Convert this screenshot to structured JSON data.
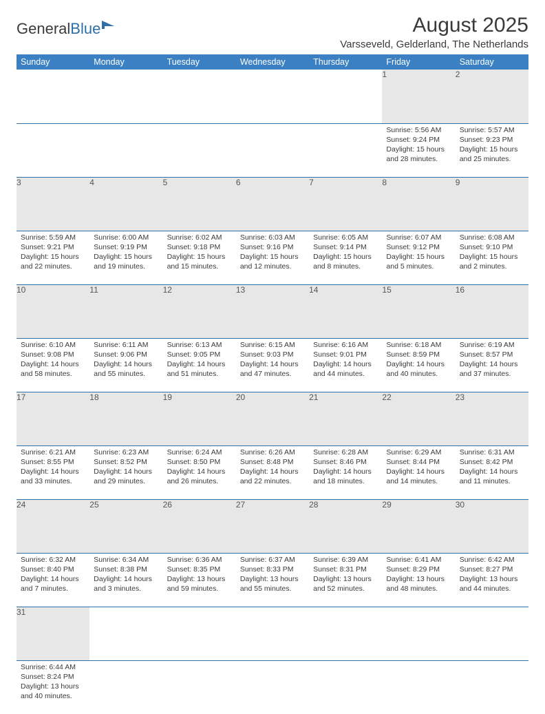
{
  "logo": {
    "text1": "General",
    "text2": "Blue"
  },
  "title": "August 2025",
  "location": "Varsseveld, Gelderland, The Netherlands",
  "colors": {
    "header_bg": "#3a80c2",
    "header_text": "#ffffff",
    "daynum_bg": "#e7e7e7",
    "daynum_text": "#555555",
    "rule": "#2f6fa8",
    "body_text": "#3a3a3a",
    "logo_accent": "#2f6fa8"
  },
  "weekdays": [
    "Sunday",
    "Monday",
    "Tuesday",
    "Wednesday",
    "Thursday",
    "Friday",
    "Saturday"
  ],
  "weeks": [
    [
      null,
      null,
      null,
      null,
      null,
      {
        "n": "1",
        "sr": "Sunrise: 5:56 AM",
        "ss": "Sunset: 9:24 PM",
        "dl": "Daylight: 15 hours and 28 minutes."
      },
      {
        "n": "2",
        "sr": "Sunrise: 5:57 AM",
        "ss": "Sunset: 9:23 PM",
        "dl": "Daylight: 15 hours and 25 minutes."
      }
    ],
    [
      {
        "n": "3",
        "sr": "Sunrise: 5:59 AM",
        "ss": "Sunset: 9:21 PM",
        "dl": "Daylight: 15 hours and 22 minutes."
      },
      {
        "n": "4",
        "sr": "Sunrise: 6:00 AM",
        "ss": "Sunset: 9:19 PM",
        "dl": "Daylight: 15 hours and 19 minutes."
      },
      {
        "n": "5",
        "sr": "Sunrise: 6:02 AM",
        "ss": "Sunset: 9:18 PM",
        "dl": "Daylight: 15 hours and 15 minutes."
      },
      {
        "n": "6",
        "sr": "Sunrise: 6:03 AM",
        "ss": "Sunset: 9:16 PM",
        "dl": "Daylight: 15 hours and 12 minutes."
      },
      {
        "n": "7",
        "sr": "Sunrise: 6:05 AM",
        "ss": "Sunset: 9:14 PM",
        "dl": "Daylight: 15 hours and 8 minutes."
      },
      {
        "n": "8",
        "sr": "Sunrise: 6:07 AM",
        "ss": "Sunset: 9:12 PM",
        "dl": "Daylight: 15 hours and 5 minutes."
      },
      {
        "n": "9",
        "sr": "Sunrise: 6:08 AM",
        "ss": "Sunset: 9:10 PM",
        "dl": "Daylight: 15 hours and 2 minutes."
      }
    ],
    [
      {
        "n": "10",
        "sr": "Sunrise: 6:10 AM",
        "ss": "Sunset: 9:08 PM",
        "dl": "Daylight: 14 hours and 58 minutes."
      },
      {
        "n": "11",
        "sr": "Sunrise: 6:11 AM",
        "ss": "Sunset: 9:06 PM",
        "dl": "Daylight: 14 hours and 55 minutes."
      },
      {
        "n": "12",
        "sr": "Sunrise: 6:13 AM",
        "ss": "Sunset: 9:05 PM",
        "dl": "Daylight: 14 hours and 51 minutes."
      },
      {
        "n": "13",
        "sr": "Sunrise: 6:15 AM",
        "ss": "Sunset: 9:03 PM",
        "dl": "Daylight: 14 hours and 47 minutes."
      },
      {
        "n": "14",
        "sr": "Sunrise: 6:16 AM",
        "ss": "Sunset: 9:01 PM",
        "dl": "Daylight: 14 hours and 44 minutes."
      },
      {
        "n": "15",
        "sr": "Sunrise: 6:18 AM",
        "ss": "Sunset: 8:59 PM",
        "dl": "Daylight: 14 hours and 40 minutes."
      },
      {
        "n": "16",
        "sr": "Sunrise: 6:19 AM",
        "ss": "Sunset: 8:57 PM",
        "dl": "Daylight: 14 hours and 37 minutes."
      }
    ],
    [
      {
        "n": "17",
        "sr": "Sunrise: 6:21 AM",
        "ss": "Sunset: 8:55 PM",
        "dl": "Daylight: 14 hours and 33 minutes."
      },
      {
        "n": "18",
        "sr": "Sunrise: 6:23 AM",
        "ss": "Sunset: 8:52 PM",
        "dl": "Daylight: 14 hours and 29 minutes."
      },
      {
        "n": "19",
        "sr": "Sunrise: 6:24 AM",
        "ss": "Sunset: 8:50 PM",
        "dl": "Daylight: 14 hours and 26 minutes."
      },
      {
        "n": "20",
        "sr": "Sunrise: 6:26 AM",
        "ss": "Sunset: 8:48 PM",
        "dl": "Daylight: 14 hours and 22 minutes."
      },
      {
        "n": "21",
        "sr": "Sunrise: 6:28 AM",
        "ss": "Sunset: 8:46 PM",
        "dl": "Daylight: 14 hours and 18 minutes."
      },
      {
        "n": "22",
        "sr": "Sunrise: 6:29 AM",
        "ss": "Sunset: 8:44 PM",
        "dl": "Daylight: 14 hours and 14 minutes."
      },
      {
        "n": "23",
        "sr": "Sunrise: 6:31 AM",
        "ss": "Sunset: 8:42 PM",
        "dl": "Daylight: 14 hours and 11 minutes."
      }
    ],
    [
      {
        "n": "24",
        "sr": "Sunrise: 6:32 AM",
        "ss": "Sunset: 8:40 PM",
        "dl": "Daylight: 14 hours and 7 minutes."
      },
      {
        "n": "25",
        "sr": "Sunrise: 6:34 AM",
        "ss": "Sunset: 8:38 PM",
        "dl": "Daylight: 14 hours and 3 minutes."
      },
      {
        "n": "26",
        "sr": "Sunrise: 6:36 AM",
        "ss": "Sunset: 8:35 PM",
        "dl": "Daylight: 13 hours and 59 minutes."
      },
      {
        "n": "27",
        "sr": "Sunrise: 6:37 AM",
        "ss": "Sunset: 8:33 PM",
        "dl": "Daylight: 13 hours and 55 minutes."
      },
      {
        "n": "28",
        "sr": "Sunrise: 6:39 AM",
        "ss": "Sunset: 8:31 PM",
        "dl": "Daylight: 13 hours and 52 minutes."
      },
      {
        "n": "29",
        "sr": "Sunrise: 6:41 AM",
        "ss": "Sunset: 8:29 PM",
        "dl": "Daylight: 13 hours and 48 minutes."
      },
      {
        "n": "30",
        "sr": "Sunrise: 6:42 AM",
        "ss": "Sunset: 8:27 PM",
        "dl": "Daylight: 13 hours and 44 minutes."
      }
    ],
    [
      {
        "n": "31",
        "sr": "Sunrise: 6:44 AM",
        "ss": "Sunset: 8:24 PM",
        "dl": "Daylight: 13 hours and 40 minutes."
      },
      null,
      null,
      null,
      null,
      null,
      null
    ]
  ]
}
